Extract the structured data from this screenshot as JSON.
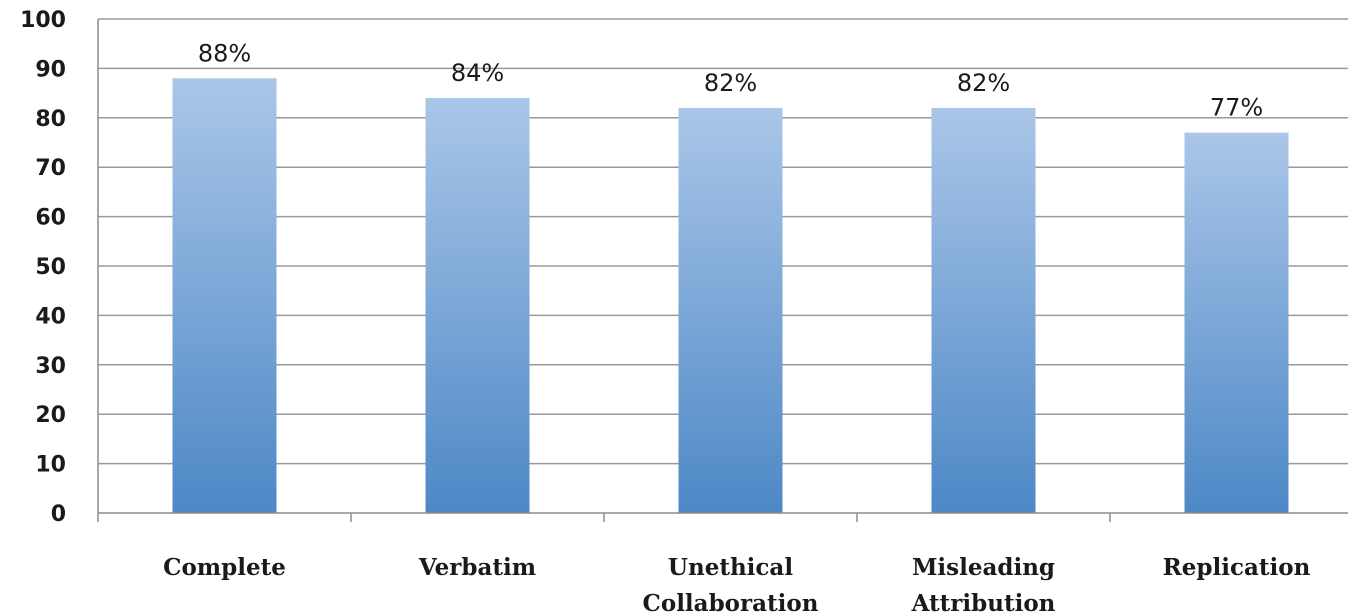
{
  "chart_data": {
    "type": "bar",
    "categories": [
      [
        "Complete"
      ],
      [
        "Verbatim"
      ],
      [
        "Unethical",
        "Collaboration"
      ],
      [
        "Misleading",
        "Attribution"
      ],
      [
        "Replication"
      ]
    ],
    "values": [
      88,
      84,
      82,
      82,
      77
    ],
    "data_labels": [
      "88%",
      "84%",
      "82%",
      "82%",
      "77%"
    ],
    "ylim": [
      0,
      100
    ],
    "yticks": [
      0,
      10,
      20,
      30,
      40,
      50,
      60,
      70,
      80,
      90,
      100
    ],
    "grid": true,
    "legend": "none",
    "colors": {
      "bar_top": "#aac6e8",
      "bar_bottom": "#4d88c6",
      "gridline": "#9a9a9a"
    }
  }
}
